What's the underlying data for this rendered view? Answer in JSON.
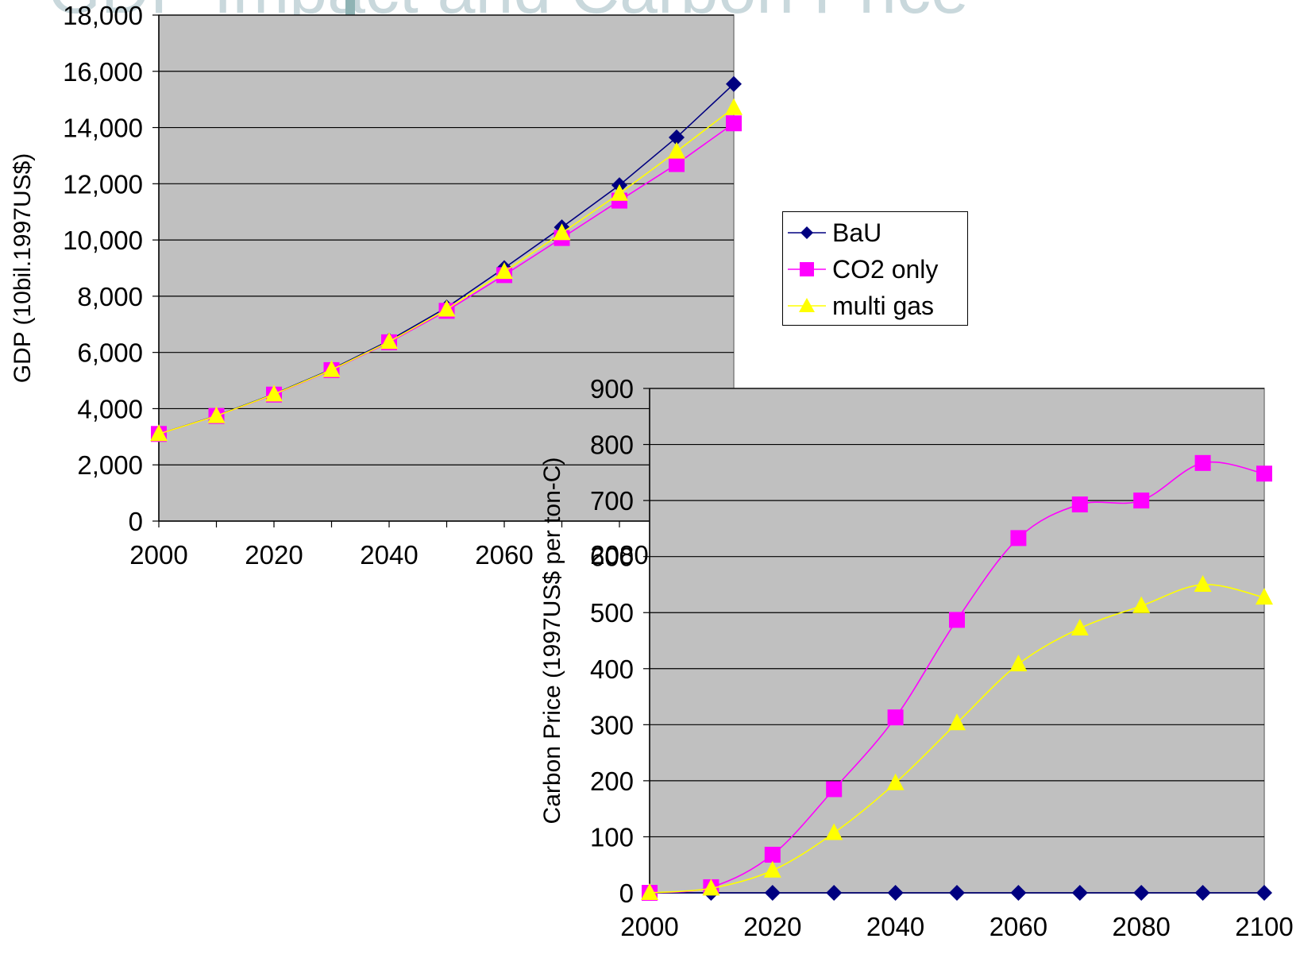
{
  "title": "GDP Impact and Carbon Price",
  "colors": {
    "plot_bg": "#c0c0c0",
    "bau": "#000080",
    "co2_only": "#ff00ff",
    "multi_gas": "#ffff00"
  },
  "legend": {
    "items": [
      {
        "label": "BaU",
        "marker": "diamond",
        "color": "#000080"
      },
      {
        "label": "CO2 only",
        "marker": "square",
        "color": "#ff00ff"
      },
      {
        "label": "multi gas",
        "marker": "triangle",
        "color": "#ffff00"
      }
    ]
  },
  "chart_data": [
    {
      "type": "line",
      "ylabel": "GDP (10bil.1997US$)",
      "xlabel": "",
      "x_ticks": [
        "2000",
        "2020",
        "2040",
        "2060",
        "2080"
      ],
      "y_ticks": [
        "0",
        "2,000",
        "4,000",
        "6,000",
        "8,000",
        "10,000",
        "12,000",
        "14,000",
        "16,000",
        "18,000"
      ],
      "xlim": [
        2000,
        2100
      ],
      "ylim": [
        0,
        18000
      ],
      "grid": true,
      "x": [
        2000,
        2010,
        2020,
        2030,
        2040,
        2050,
        2060,
        2070,
        2080,
        2090,
        2100
      ],
      "series": [
        {
          "name": "BaU",
          "values": [
            3100,
            3750,
            4520,
            5400,
            6420,
            7600,
            9000,
            10450,
            11950,
            13650,
            15550
          ]
        },
        {
          "name": "CO2 only",
          "values": [
            3100,
            3740,
            4500,
            5370,
            6360,
            7480,
            8750,
            10070,
            11400,
            12700,
            14150
          ]
        },
        {
          "name": "multi gas",
          "values": [
            3100,
            3740,
            4510,
            5380,
            6380,
            7530,
            8870,
            10250,
            11650,
            13150,
            14700
          ]
        }
      ]
    },
    {
      "type": "line",
      "ylabel": "Carbon Price (1997US$ per ton-C)",
      "xlabel": "",
      "x_ticks": [
        "2000",
        "2020",
        "2040",
        "2060",
        "2080",
        "2100"
      ],
      "y_ticks": [
        "0",
        "100",
        "200",
        "300",
        "400",
        "500",
        "600",
        "700",
        "800",
        "900"
      ],
      "xlim": [
        2000,
        2100
      ],
      "ylim": [
        0,
        900
      ],
      "grid": true,
      "x": [
        2000,
        2010,
        2020,
        2030,
        2040,
        2050,
        2060,
        2070,
        2080,
        2090,
        2100
      ],
      "series": [
        {
          "name": "BaU",
          "values": [
            0,
            0,
            0,
            0,
            0,
            0,
            0,
            0,
            0,
            0,
            0
          ]
        },
        {
          "name": "CO2 only",
          "values": [
            0,
            10,
            68,
            185,
            313,
            487,
            633,
            693,
            700,
            767,
            748
          ]
        },
        {
          "name": "multi gas",
          "values": [
            0,
            8,
            40,
            107,
            196,
            303,
            408,
            472,
            512,
            550,
            527
          ]
        }
      ]
    }
  ]
}
